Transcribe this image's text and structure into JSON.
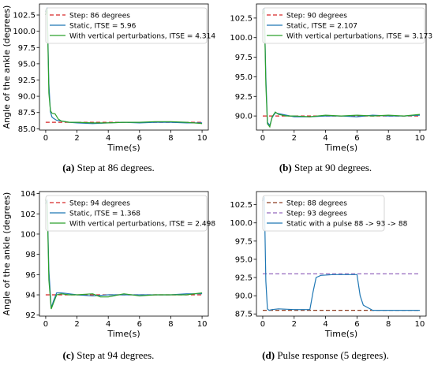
{
  "colors": {
    "red": "#d62728",
    "purple": "#9467bd",
    "blue": "#1f77b4",
    "green": "#2ca02c",
    "brown": "#8c3a1e"
  },
  "captions": [
    {
      "tag": "(a)",
      "text": " Step at 86 degrees."
    },
    {
      "tag": "(b)",
      "text": " Step at 90 degrees."
    },
    {
      "tag": "(c)",
      "text": " Step at 94 degrees."
    },
    {
      "tag": "(d)",
      "text": " Pulse response (5 degrees)."
    }
  ],
  "chart_data": [
    {
      "type": "line",
      "xlabel": "Time(s)",
      "ylabel": "Angle of the ankle (degrees)",
      "xlim": [
        -0.4,
        10.4
      ],
      "ylim": [
        84.8,
        104.2
      ],
      "xticks": [
        0,
        2,
        4,
        6,
        8,
        10
      ],
      "yticks": [
        85.0,
        87.5,
        90.0,
        92.5,
        95.0,
        97.5,
        100.0,
        102.5
      ],
      "ytick_labels": [
        "85.0",
        "87.5",
        "90.0",
        "92.5",
        "95.0",
        "97.5",
        "100.0",
        "102.5"
      ],
      "series": [
        {
          "name": "Step: 86 degrees",
          "style": "dashed",
          "color": "#d62728",
          "x": [
            0,
            10
          ],
          "y": [
            86,
            86
          ]
        },
        {
          "name": "Static, ITSE = 5.96",
          "style": "solid",
          "color": "#1f77b4",
          "x": [
            0,
            0.1,
            0.2,
            0.3,
            0.4,
            0.5,
            0.7,
            1.0,
            1.5,
            2.0,
            3.0,
            4.0,
            5.0,
            6.0,
            7.0,
            8.0,
            9.0,
            10.0
          ],
          "y": [
            103.0,
            103.6,
            92.0,
            87.6,
            86.8,
            86.6,
            86.3,
            86.2,
            86.0,
            85.9,
            85.8,
            85.9,
            86.0,
            85.9,
            86.0,
            86.0,
            85.9,
            85.9
          ]
        },
        {
          "name": "With vertical perturbations, ITSE = 4.314",
          "style": "solid",
          "color": "#2ca02c",
          "x": [
            0,
            0.1,
            0.2,
            0.3,
            0.4,
            0.6,
            0.8,
            1.0,
            1.5,
            2.0,
            3.0,
            4.0,
            5.0,
            6.0,
            7.0,
            8.0,
            9.0,
            10.0
          ],
          "y": [
            102.5,
            103.4,
            90.5,
            87.8,
            87.4,
            87.3,
            86.5,
            86.2,
            86.0,
            86.0,
            85.9,
            85.9,
            86.0,
            86.0,
            86.1,
            86.1,
            86.0,
            85.8
          ]
        }
      ]
    },
    {
      "type": "line",
      "xlabel": "Time(s)",
      "xlim": [
        -0.4,
        10.4
      ],
      "ylim": [
        88.2,
        104.3
      ],
      "xticks": [
        0,
        2,
        4,
        6,
        8,
        10
      ],
      "yticks": [
        90.0,
        92.5,
        95.0,
        97.5,
        100.0,
        102.5
      ],
      "ytick_labels": [
        "90.0",
        "92.5",
        "95.0",
        "97.5",
        "100.0",
        "102.5"
      ],
      "series": [
        {
          "name": "Step: 90 degrees",
          "style": "dashed",
          "color": "#d62728",
          "x": [
            0,
            10
          ],
          "y": [
            90,
            90
          ]
        },
        {
          "name": "Static, ITSE = 2.107",
          "style": "solid",
          "color": "#1f77b4",
          "x": [
            0,
            0.1,
            0.2,
            0.3,
            0.45,
            0.6,
            0.8,
            1.0,
            1.5,
            2.0,
            3.0,
            4.0,
            5.0,
            6.0,
            7.0,
            8.0,
            9.0,
            10.0
          ],
          "y": [
            103.5,
            103.7,
            95.0,
            89.2,
            88.8,
            89.8,
            90.4,
            90.3,
            90.1,
            89.9,
            89.9,
            90.0,
            90.0,
            89.9,
            90.1,
            90.0,
            90.0,
            90.1
          ]
        },
        {
          "name": "With vertical perturbations, ITSE = 3.173",
          "style": "solid",
          "color": "#2ca02c",
          "x": [
            0,
            0.1,
            0.2,
            0.3,
            0.45,
            0.6,
            0.8,
            1.0,
            1.5,
            2.0,
            3.0,
            4.0,
            5.0,
            6.0,
            7.0,
            8.0,
            9.0,
            10.0
          ],
          "y": [
            103.0,
            103.5,
            94.0,
            89.0,
            88.6,
            89.9,
            90.5,
            90.2,
            90.0,
            90.0,
            89.9,
            90.1,
            90.0,
            90.1,
            90.0,
            90.1,
            90.0,
            90.2
          ]
        }
      ]
    },
    {
      "type": "line",
      "xlabel": "Time(s)",
      "ylabel": "Angle of the ankle (degrees)",
      "xlim": [
        -0.4,
        10.4
      ],
      "ylim": [
        91.9,
        104.2
      ],
      "xticks": [
        0,
        2,
        4,
        6,
        8,
        10
      ],
      "yticks": [
        92,
        94,
        96,
        98,
        100,
        102,
        104
      ],
      "ytick_labels": [
        "92",
        "94",
        "96",
        "98",
        "100",
        "102",
        "104"
      ],
      "series": [
        {
          "name": "Step: 94 degrees",
          "style": "dashed",
          "color": "#d62728",
          "x": [
            0,
            10
          ],
          "y": [
            94,
            94
          ]
        },
        {
          "name": "Static, ITSE = 1.368",
          "style": "solid",
          "color": "#1f77b4",
          "x": [
            0,
            0.1,
            0.2,
            0.35,
            0.5,
            0.7,
            1.0,
            1.5,
            2.0,
            3.0,
            4.0,
            5.0,
            6.0,
            7.0,
            8.0,
            9.0,
            10.0
          ],
          "y": [
            103.0,
            103.3,
            96.5,
            92.7,
            93.4,
            94.2,
            94.2,
            94.1,
            94.0,
            93.9,
            94.0,
            94.0,
            94.0,
            94.0,
            94.0,
            94.1,
            94.1
          ]
        },
        {
          "name": "With vertical perturbations, ITSE = 2.498",
          "style": "solid",
          "color": "#2ca02c",
          "x": [
            0,
            0.1,
            0.2,
            0.35,
            0.5,
            0.7,
            1.0,
            1.5,
            2.0,
            3.0,
            3.5,
            4.0,
            5.0,
            6.0,
            7.0,
            8.0,
            9.0,
            10.0
          ],
          "y": [
            103.4,
            103.0,
            95.5,
            92.6,
            93.2,
            94.0,
            94.1,
            94.0,
            94.0,
            94.1,
            93.8,
            93.8,
            94.1,
            93.9,
            94.0,
            94.0,
            94.0,
            94.2
          ]
        }
      ]
    },
    {
      "type": "line",
      "xlabel": "Time(s)",
      "xlim": [
        -0.4,
        10.4
      ],
      "ylim": [
        87.2,
        104.3
      ],
      "xticks": [
        0,
        2,
        4,
        6,
        8,
        10
      ],
      "yticks": [
        87.5,
        90.0,
        92.5,
        95.0,
        97.5,
        100.0,
        102.5
      ],
      "ytick_labels": [
        "87.5",
        "90.0",
        "92.5",
        "95.0",
        "97.5",
        "100.0",
        "102.5"
      ],
      "series": [
        {
          "name": "Step: 88 degrees",
          "style": "dashed",
          "color": "#8c3a1e",
          "x": [
            0,
            10
          ],
          "y": [
            88,
            88
          ]
        },
        {
          "name": "Step: 93 degrees",
          "style": "dashed",
          "color": "#9467bd",
          "x": [
            0,
            10
          ],
          "y": [
            93,
            93
          ]
        },
        {
          "name": "Static with a pulse 88 -> 93 -> 88",
          "style": "solid",
          "color": "#1f77b4",
          "x": [
            0,
            0.1,
            0.2,
            0.3,
            0.4,
            0.6,
            1.0,
            2.0,
            3.0,
            3.2,
            3.4,
            3.7,
            4.5,
            6.0,
            6.2,
            6.4,
            7.0,
            8.0,
            9.0,
            10.0
          ],
          "y": [
            103.0,
            103.6,
            92.0,
            88.2,
            88.0,
            88.1,
            88.2,
            88.1,
            88.1,
            90.5,
            92.5,
            92.8,
            92.9,
            92.9,
            90.0,
            88.7,
            88.0,
            88.0,
            88.0,
            88.0
          ]
        }
      ]
    }
  ]
}
